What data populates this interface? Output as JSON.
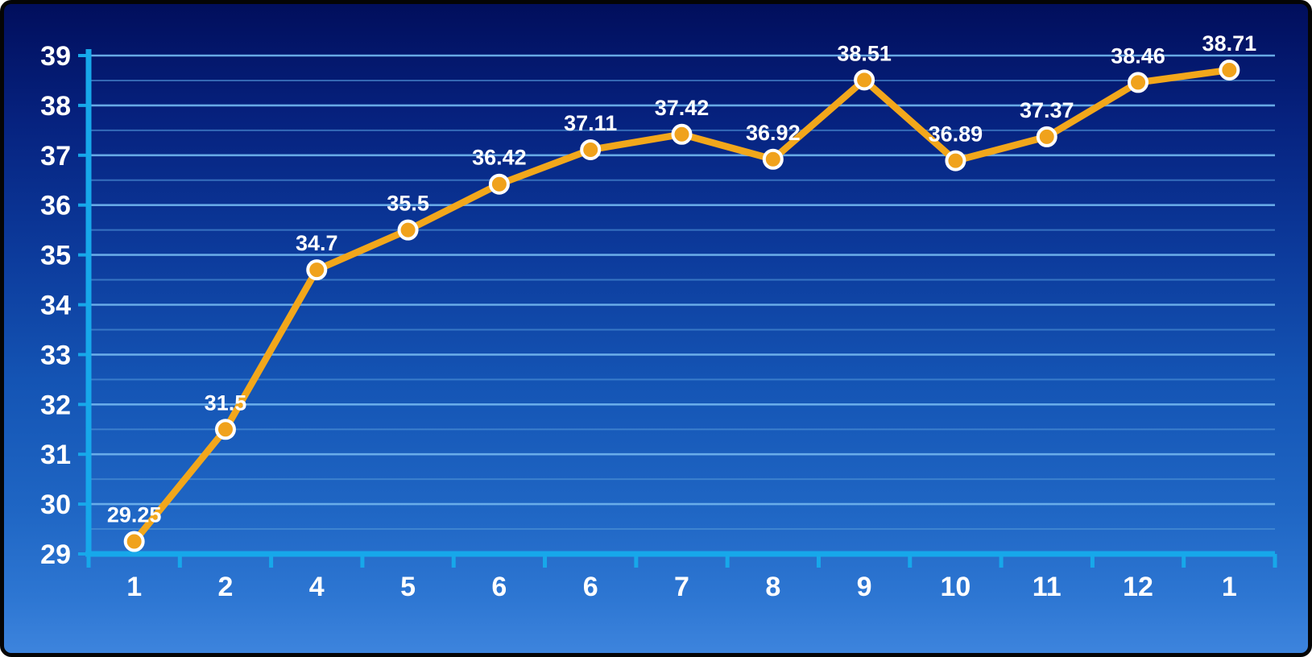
{
  "chart": {
    "title": "",
    "colors": {
      "background_top": "#010e5c",
      "background_bottom": "#3d84dd",
      "axis": "#17a8ea",
      "grid_major": "#6db1ec",
      "grid_minor": "#4e92d6",
      "line": "#f2a71b",
      "marker_fill": "#f0a21c",
      "marker_stroke": "#ffffff",
      "text": "#ffffff"
    }
  },
  "chart_data": {
    "type": "line",
    "categories": [
      "1",
      "2",
      "4",
      "5",
      "6",
      "6",
      "7",
      "8",
      "9",
      "10",
      "11",
      "12",
      "1"
    ],
    "values": [
      29.25,
      31.5,
      34.7,
      35.5,
      36.42,
      37.11,
      37.42,
      36.92,
      38.51,
      36.89,
      37.37,
      38.46,
      38.71
    ],
    "point_labels": [
      "29.25",
      "31.5",
      "34.7",
      "35.5",
      "36.42",
      "37.11",
      "37.42",
      "36.92",
      "38.51",
      "36.89",
      "37.37",
      "38.46",
      "38.71"
    ],
    "title": "",
    "xlabel": "",
    "ylabel": "",
    "ylim": [
      29,
      39
    ],
    "ytick_step": 1,
    "y_minor_step": 0.5,
    "ytick_labels": [
      "29",
      "30",
      "31",
      "32",
      "33",
      "34",
      "35",
      "36",
      "37",
      "38",
      "39"
    ],
    "grid": true,
    "legend": false
  }
}
